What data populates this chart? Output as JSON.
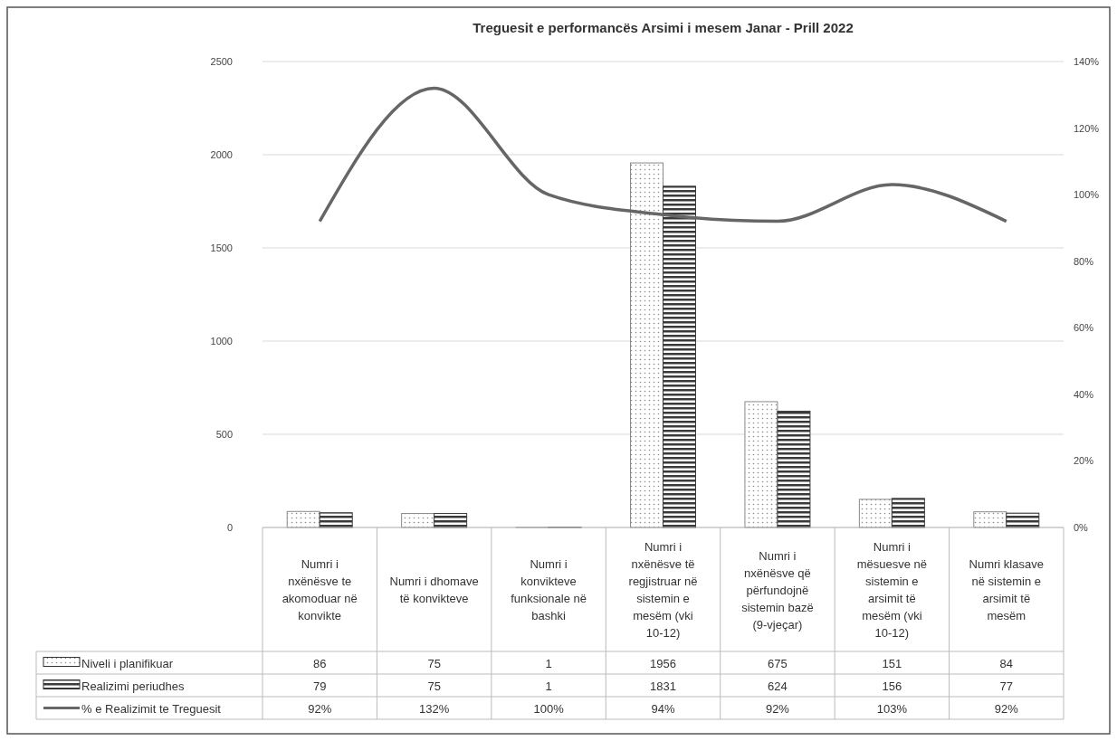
{
  "chart_data": {
    "type": "bar",
    "title": "Treguesit e performancës Arsimi i mesem Janar - Prill 2022",
    "categories": [
      "Numri i nxënësve te akomoduar në konvikte",
      "Numri i dhomave të konvikteve",
      "Numri i konvikteve funksionale në bashki",
      "Numri i nxënësve të regjistruar në sistemin e mesëm (vki 10-12)",
      "Numri i nxënësve që përfundojnë sistemin bazë (9-vjeçar)",
      "Numri i mësuesve në sistemin e arsimit të mesëm (vki 10-12)",
      "Numri klasave në sistemin e arsimit të mesëm"
    ],
    "series": [
      {
        "name": "Niveli i planifikuar",
        "color": "#8a8a8a",
        "values": [
          86,
          75,
          1,
          1956,
          675,
          151,
          84
        ],
        "value_labels": [
          "86",
          "75",
          "1",
          "1956",
          "675",
          "151",
          "84"
        ]
      },
      {
        "name": "Realizimi periudhes",
        "color": "#3a3a3a",
        "values": [
          79,
          75,
          1,
          1831,
          624,
          156,
          77
        ],
        "value_labels": [
          "79",
          "75",
          "1",
          "1831",
          "624",
          "156",
          "77"
        ]
      },
      {
        "name": "% e Realizimit te Treguesit",
        "type": "line",
        "axis": "y2",
        "color": "#666666",
        "values": [
          92,
          132,
          100,
          94,
          92,
          103,
          92
        ],
        "value_labels": [
          "92%",
          "132%",
          "100%",
          "94%",
          "92%",
          "103%",
          "92%"
        ]
      }
    ],
    "ylim": [
      0,
      2500
    ],
    "yticks": [
      0,
      500,
      1000,
      1500,
      2000,
      2500
    ],
    "y2lim": [
      0,
      140
    ],
    "y2ticks": [
      {
        "value": 0,
        "label": "0%"
      },
      {
        "value": 20,
        "label": "20%"
      },
      {
        "value": 40,
        "label": "40%"
      },
      {
        "value": 60,
        "label": "60%"
      },
      {
        "value": 80,
        "label": "80%"
      },
      {
        "value": 100,
        "label": "100%"
      },
      {
        "value": 120,
        "label": "120%"
      },
      {
        "value": 140,
        "label": "140%"
      }
    ],
    "grid": "y",
    "legend": "bottom",
    "marker": "none",
    "line_style": "solid"
  }
}
